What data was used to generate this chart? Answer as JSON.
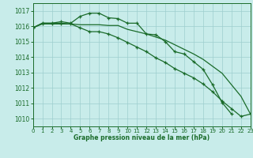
{
  "title": "Graphe pression niveau de la mer (hPa)",
  "background_color": "#c8ecea",
  "grid_color": "#9ecece",
  "line_color": "#1a6b2a",
  "xlim": [
    0,
    23
  ],
  "ylim": [
    1009.5,
    1017.5
  ],
  "yticks": [
    1010,
    1011,
    1012,
    1013,
    1014,
    1015,
    1016,
    1017
  ],
  "xticks": [
    0,
    1,
    2,
    3,
    4,
    5,
    6,
    7,
    8,
    9,
    10,
    11,
    12,
    13,
    14,
    15,
    16,
    17,
    18,
    19,
    20,
    21,
    22,
    23
  ],
  "series": [
    {
      "x": [
        0,
        1,
        2,
        3,
        4,
        5,
        6,
        7,
        8,
        9,
        10,
        11,
        12,
        13,
        14,
        15,
        16,
        17,
        18,
        19,
        20,
        21
      ],
      "y": [
        1015.9,
        1016.2,
        1016.2,
        1016.3,
        1016.2,
        1016.65,
        1016.85,
        1016.85,
        1016.55,
        1016.5,
        1016.2,
        1016.2,
        1015.5,
        1015.45,
        1015.0,
        1014.35,
        1014.2,
        1013.7,
        1013.2,
        1012.2,
        1011.05,
        1010.3
      ],
      "marker": true,
      "lw": 0.9
    },
    {
      "x": [
        0,
        1,
        2,
        3,
        4,
        5,
        6,
        7,
        8,
        9,
        10,
        11,
        12,
        13,
        14,
        15,
        16,
        17,
        18,
        19,
        20,
        21,
        22,
        23
      ],
      "y": [
        1015.9,
        1016.2,
        1016.2,
        1016.2,
        1016.15,
        1016.1,
        1016.1,
        1016.1,
        1016.05,
        1016.05,
        1015.8,
        1015.65,
        1015.5,
        1015.3,
        1015.1,
        1014.8,
        1014.5,
        1014.2,
        1013.85,
        1013.4,
        1012.95,
        1012.2,
        1011.45,
        1010.3
      ],
      "marker": false,
      "lw": 0.9
    },
    {
      "x": [
        0,
        1,
        2,
        3,
        4,
        5,
        6,
        7,
        8,
        9,
        10,
        11,
        12,
        13,
        14,
        15,
        16,
        17,
        18,
        19,
        20,
        21,
        22,
        23
      ],
      "y": [
        1015.9,
        1016.15,
        1016.15,
        1016.15,
        1016.15,
        1015.9,
        1015.65,
        1015.65,
        1015.5,
        1015.25,
        1014.95,
        1014.65,
        1014.35,
        1013.95,
        1013.65,
        1013.25,
        1012.95,
        1012.65,
        1012.25,
        1011.75,
        1011.15,
        1010.65,
        1010.15,
        1010.3
      ],
      "marker": true,
      "lw": 0.9
    }
  ],
  "xlabel_fontsize": 5.5,
  "ytick_fontsize": 5.5,
  "xtick_fontsize": 5.0
}
